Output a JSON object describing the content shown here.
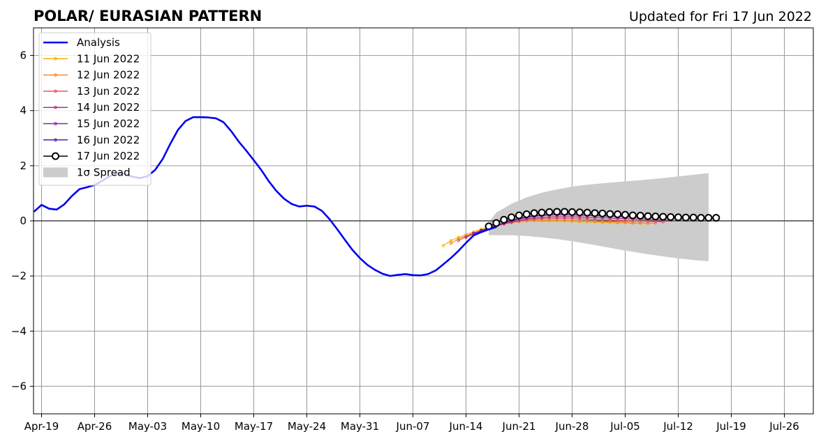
{
  "chart_data": {
    "type": "line",
    "title": "POLAR/ EURASIAN  PATTERN",
    "subtitle": "Updated for Fri 17 Jun 2022",
    "ylim": [
      -7,
      7
    ],
    "y_ticks": [
      {
        "v": 6,
        "label": "6"
      },
      {
        "v": 4,
        "label": "4"
      },
      {
        "v": 2,
        "label": "2"
      },
      {
        "v": 0,
        "label": "0"
      },
      {
        "v": -2,
        "label": "−2"
      },
      {
        "v": -4,
        "label": "−4"
      },
      {
        "v": -6,
        "label": "−6"
      }
    ],
    "x_ticks": [
      {
        "day": 0,
        "label": "Apr-19"
      },
      {
        "day": 7,
        "label": "Apr-26"
      },
      {
        "day": 14,
        "label": "May-03"
      },
      {
        "day": 21,
        "label": "May-10"
      },
      {
        "day": 28,
        "label": "May-17"
      },
      {
        "day": 35,
        "label": "May-24"
      },
      {
        "day": 42,
        "label": "May-31"
      },
      {
        "day": 49,
        "label": "Jun-07"
      },
      {
        "day": 56,
        "label": "Jun-14"
      },
      {
        "day": 63,
        "label": "Jun-21"
      },
      {
        "day": 70,
        "label": "Jun-28"
      },
      {
        "day": 77,
        "label": "Jul-05"
      },
      {
        "day": 84,
        "label": "Jul-12"
      },
      {
        "day": 91,
        "label": "Jul-19"
      },
      {
        "day": 98,
        "label": "Jul-26"
      }
    ],
    "grid": true,
    "legend_position": "top-left",
    "legend": [
      {
        "label": "Analysis"
      },
      {
        "label": "11 Jun 2022"
      },
      {
        "label": "12 Jun 2022"
      },
      {
        "label": "13 Jun 2022"
      },
      {
        "label": "14 Jun 2022"
      },
      {
        "label": "15 Jun 2022"
      },
      {
        "label": "16 Jun 2022"
      },
      {
        "label": "17 Jun 2022"
      },
      {
        "label": "1σ Spread"
      }
    ],
    "analysis": {
      "color": "#0000ee",
      "start_day": -1,
      "values": [
        0.33,
        0.58,
        0.44,
        0.41,
        0.6,
        0.9,
        1.15,
        1.22,
        1.3,
        1.45,
        1.62,
        1.73,
        1.7,
        1.6,
        1.55,
        1.62,
        1.85,
        2.25,
        2.8,
        3.3,
        3.62,
        3.76,
        3.76,
        3.75,
        3.72,
        3.58,
        3.26,
        2.88,
        2.55,
        2.2,
        1.84,
        1.43,
        1.08,
        0.8,
        0.61,
        0.52,
        0.55,
        0.52,
        0.36,
        0.06,
        -0.3,
        -0.68,
        -1.05,
        -1.35,
        -1.6,
        -1.78,
        -1.92,
        -2.0,
        -1.96,
        -1.93,
        -1.97,
        -1.98,
        -1.93,
        -1.8,
        -1.58,
        -1.35,
        -1.09,
        -0.8,
        -0.53,
        -0.41,
        -0.31,
        -0.22
      ]
    },
    "forecasts": [
      {
        "name": "11 Jun 2022",
        "color": "#f5b300",
        "start_day": 53,
        "values": [
          -0.9,
          -0.72,
          -0.6,
          -0.5,
          -0.4,
          -0.3,
          -0.22,
          -0.15,
          -0.1,
          -0.06,
          -0.03,
          -0.01,
          0.0,
          0.0,
          0.0,
          0.0,
          -0.01,
          -0.02,
          -0.03,
          -0.04,
          -0.05,
          -0.06,
          -0.07,
          -0.08,
          -0.08,
          -0.09,
          -0.09,
          -0.1
        ]
      },
      {
        "name": "12 Jun 2022",
        "color": "#f08a3a",
        "start_day": 54,
        "values": [
          -0.82,
          -0.66,
          -0.54,
          -0.44,
          -0.34,
          -0.26,
          -0.18,
          -0.12,
          -0.07,
          -0.03,
          0.0,
          0.02,
          0.03,
          0.03,
          0.03,
          0.02,
          0.01,
          0.0,
          -0.01,
          -0.02,
          -0.03,
          -0.04,
          -0.05,
          -0.06,
          -0.07,
          -0.08,
          -0.08,
          -0.09
        ]
      },
      {
        "name": "13 Jun 2022",
        "color": "#e0566a",
        "start_day": 55,
        "values": [
          -0.72,
          -0.57,
          -0.45,
          -0.35,
          -0.26,
          -0.18,
          -0.11,
          -0.05,
          0.0,
          0.04,
          0.06,
          0.08,
          0.09,
          0.09,
          0.09,
          0.08,
          0.07,
          0.06,
          0.05,
          0.04,
          0.03,
          0.02,
          0.01,
          0.0,
          -0.01,
          -0.02,
          -0.03,
          -0.04
        ]
      },
      {
        "name": "14 Jun 2022",
        "color": "#b0307a",
        "start_day": 56,
        "values": [
          -0.6,
          -0.48,
          -0.38,
          -0.28,
          -0.19,
          -0.11,
          -0.04,
          0.02,
          0.07,
          0.1,
          0.12,
          0.14,
          0.15,
          0.15,
          0.15,
          0.14,
          0.13,
          0.12,
          0.11,
          0.1,
          0.09,
          0.08,
          0.07,
          0.06,
          0.05,
          0.04,
          0.03,
          0.02
        ]
      },
      {
        "name": "15 Jun 2022",
        "color": "#8e1fb0",
        "start_day": 57,
        "values": [
          -0.45,
          -0.36,
          -0.26,
          -0.17,
          -0.08,
          0.0,
          0.07,
          0.12,
          0.16,
          0.19,
          0.21,
          0.22,
          0.22,
          0.22,
          0.21,
          0.2,
          0.19,
          0.18,
          0.17,
          0.16,
          0.15,
          0.14,
          0.13,
          0.12,
          0.11,
          0.1,
          0.1,
          0.09
        ]
      },
      {
        "name": "16 Jun 2022",
        "color": "#5a1aa0",
        "start_day": 58,
        "values": [
          -0.35,
          -0.27,
          -0.17,
          -0.07,
          0.02,
          0.09,
          0.14,
          0.18,
          0.2,
          0.22,
          0.23,
          0.23,
          0.22,
          0.21,
          0.2,
          0.19,
          0.18,
          0.17,
          0.16,
          0.15,
          0.14,
          0.13,
          0.12,
          0.11,
          0.11,
          0.1,
          0.1,
          0.09
        ]
      },
      {
        "name": "17 Jun 2022",
        "color": "#000000",
        "start_day": 59,
        "values": [
          -0.2,
          -0.08,
          0.04,
          0.13,
          0.2,
          0.24,
          0.28,
          0.3,
          0.32,
          0.33,
          0.33,
          0.32,
          0.31,
          0.3,
          0.28,
          0.27,
          0.25,
          0.24,
          0.22,
          0.2,
          0.19,
          0.17,
          0.16,
          0.15,
          0.14,
          0.13,
          0.12,
          0.12,
          0.11,
          0.11,
          0.11
        ]
      }
    ],
    "spread": {
      "name": "1σ Spread",
      "color": "#cccccc",
      "points": [
        {
          "day": 59,
          "lo": -0.52,
          "hi": -0.05
        },
        {
          "day": 60,
          "lo": -0.52,
          "hi": 0.3
        },
        {
          "day": 62,
          "lo": -0.52,
          "hi": 0.62
        },
        {
          "day": 64,
          "lo": -0.55,
          "hi": 0.85
        },
        {
          "day": 66,
          "lo": -0.6,
          "hi": 1.02
        },
        {
          "day": 68,
          "lo": -0.66,
          "hi": 1.14
        },
        {
          "day": 70,
          "lo": -0.74,
          "hi": 1.24
        },
        {
          "day": 72,
          "lo": -0.83,
          "hi": 1.31
        },
        {
          "day": 74,
          "lo": -0.93,
          "hi": 1.36
        },
        {
          "day": 76,
          "lo": -1.03,
          "hi": 1.41
        },
        {
          "day": 78,
          "lo": -1.12,
          "hi": 1.45
        },
        {
          "day": 80,
          "lo": -1.21,
          "hi": 1.5
        },
        {
          "day": 82,
          "lo": -1.29,
          "hi": 1.55
        },
        {
          "day": 84,
          "lo": -1.36,
          "hi": 1.61
        },
        {
          "day": 86,
          "lo": -1.42,
          "hi": 1.67
        },
        {
          "day": 88,
          "lo": -1.47,
          "hi": 1.73
        }
      ]
    }
  }
}
